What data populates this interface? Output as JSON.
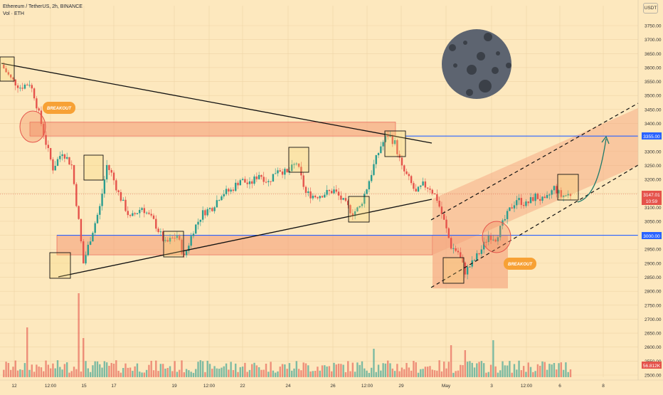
{
  "header": {
    "title": "Ethereum / TetherUS, 2h, BINANCE",
    "volume_label": "Vol · ETH"
  },
  "currency_badge": "USDT",
  "colors": {
    "background": "#fde8be",
    "up": "#2a9d8f",
    "down": "#e5534b",
    "zone_fill": "#f5a07a",
    "level_line": "#2962ff",
    "breakout_badge": "#f7a135",
    "moon": "#5d6470"
  },
  "annotations": {
    "breakout_label_1": "BREAKOUT",
    "breakout_label_2": "BREAKOUT"
  },
  "price_tags": {
    "level_high": "3355.00",
    "level_low": "3000.00",
    "last_price": "3147.01",
    "countdown": "10:59",
    "volume": "56.812K"
  },
  "chart_data": {
    "type": "candlestick",
    "symbol": "ETHUSDT",
    "timeframe": "2h",
    "y_axis": {
      "ylim": [
        2480,
        3800
      ],
      "ticks": [
        3750,
        3700,
        3650,
        3600,
        3550,
        3500,
        3450,
        3400,
        3350,
        3300,
        3250,
        3200,
        3150,
        3100,
        3050,
        3000,
        2950,
        2900,
        2850,
        2800,
        2750,
        2700,
        2650,
        2600,
        2550,
        2500
      ],
      "tick_labels": [
        "3750.00",
        "3700.00",
        "3650.00",
        "3600.00",
        "3550.00",
        "3500.00",
        "3450.00",
        "3400.00",
        "3350.00",
        "3300.00",
        "3250.00",
        "3200.00",
        "3150.00",
        "3100.00",
        "3050.00",
        "3000.00",
        "2950.00",
        "2900.00",
        "2850.00",
        "2800.00",
        "2750.00",
        "2700.00",
        "2650.00",
        "2600.00",
        "2550.00",
        "2500.00"
      ]
    },
    "x_axis": {
      "ticks": [
        "12",
        "12:00",
        "15",
        "17",
        "19",
        "12:00",
        "22",
        "24",
        "26",
        "12:00",
        "29",
        "May",
        "3",
        "12:00",
        "6",
        "8"
      ]
    },
    "price_path": [
      [
        0,
        3610
      ],
      [
        4,
        3560
      ],
      [
        8,
        3530
      ],
      [
        12,
        3545
      ],
      [
        14,
        3500
      ],
      [
        17,
        3400
      ],
      [
        19,
        3330
      ],
      [
        22,
        3240
      ],
      [
        26,
        3300
      ],
      [
        30,
        3250
      ],
      [
        33,
        3050
      ],
      [
        35,
        2900
      ],
      [
        38,
        2990
      ],
      [
        42,
        3100
      ],
      [
        45,
        3250
      ],
      [
        47,
        3220
      ],
      [
        50,
        3150
      ],
      [
        55,
        3060
      ],
      [
        60,
        3100
      ],
      [
        65,
        3050
      ],
      [
        70,
        2970
      ],
      [
        75,
        3000
      ],
      [
        78,
        2920
      ],
      [
        82,
        3020
      ],
      [
        86,
        3080
      ],
      [
        90,
        3100
      ],
      [
        94,
        3150
      ],
      [
        98,
        3160
      ],
      [
        102,
        3200
      ],
      [
        106,
        3180
      ],
      [
        110,
        3220
      ],
      [
        114,
        3190
      ],
      [
        118,
        3240
      ],
      [
        122,
        3220
      ],
      [
        126,
        3260
      ],
      [
        130,
        3150
      ],
      [
        134,
        3140
      ],
      [
        138,
        3150
      ],
      [
        142,
        3160
      ],
      [
        146,
        3120
      ],
      [
        150,
        3080
      ],
      [
        153,
        3100
      ],
      [
        156,
        3170
      ],
      [
        159,
        3250
      ],
      [
        162,
        3320
      ],
      [
        165,
        3360
      ],
      [
        168,
        3330
      ],
      [
        171,
        3240
      ],
      [
        174,
        3200
      ],
      [
        177,
        3150
      ],
      [
        180,
        3180
      ],
      [
        183,
        3170
      ],
      [
        186,
        3130
      ],
      [
        189,
        3050
      ],
      [
        192,
        2960
      ],
      [
        195,
        2940
      ],
      [
        198,
        2870
      ],
      [
        201,
        2900
      ],
      [
        205,
        2950
      ],
      [
        208,
        3000
      ],
      [
        211,
        2990
      ],
      [
        214,
        3040
      ],
      [
        217,
        3090
      ],
      [
        220,
        3130
      ],
      [
        224,
        3110
      ],
      [
        228,
        3140
      ],
      [
        232,
        3120
      ],
      [
        236,
        3170
      ],
      [
        239,
        3140
      ],
      [
        243,
        3147.01
      ]
    ],
    "levels": [
      3355,
      3000
    ],
    "series": [
      {
        "name": "ETH",
        "values": []
      }
    ]
  }
}
